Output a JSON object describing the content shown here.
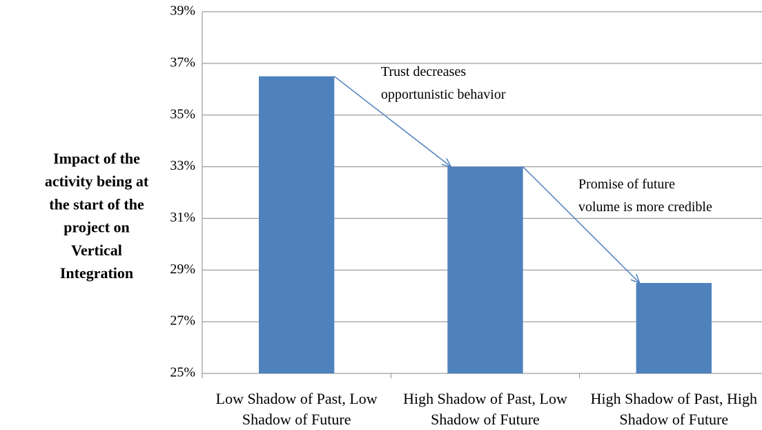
{
  "chart_data": {
    "type": "bar",
    "ylabel": [
      "Impact of the",
      "activity being at",
      "the start of the",
      "project on",
      "Vertical",
      "Integration"
    ],
    "categories": [
      "Low Shadow of Past, Low Shadow of Future",
      "High Shadow of Past, Low Shadow of Future",
      "High Shadow of Past, High Shadow of Future"
    ],
    "values": [
      36.5,
      33,
      28.5
    ],
    "color": "#4f81bd",
    "ylim": [
      25,
      39
    ],
    "yticks": [
      {
        "value": 25,
        "label": "25%"
      },
      {
        "value": 27,
        "label": "27%"
      },
      {
        "value": 29,
        "label": "29%"
      },
      {
        "value": 31,
        "label": "31%"
      },
      {
        "value": 33,
        "label": "33%"
      },
      {
        "value": 35,
        "label": "35%"
      },
      {
        "value": 37,
        "label": "37%"
      },
      {
        "value": 39,
        "label": "39%"
      }
    ],
    "grid": true,
    "annotations": [
      {
        "lines": [
          "Trust decreases",
          "opportunistic behavior"
        ]
      },
      {
        "lines": [
          "Promise of future",
          "volume is more credible"
        ]
      }
    ]
  }
}
